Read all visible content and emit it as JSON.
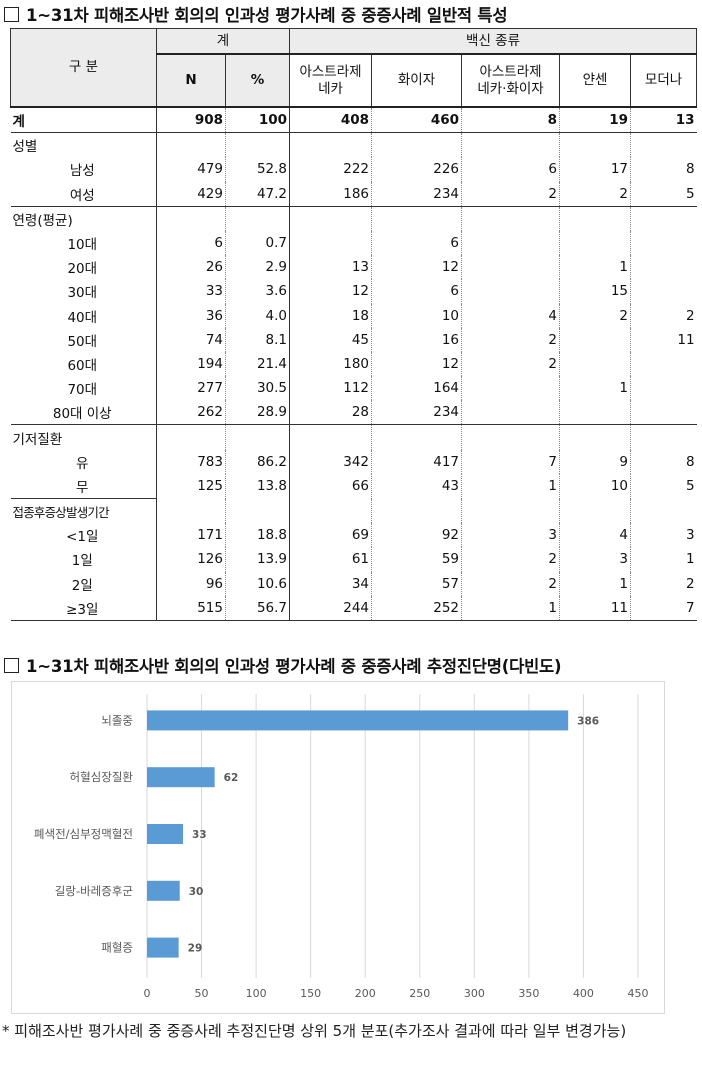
{
  "heading1": "1~31차 피해조사반 회의의 인과성 평가사례 중 중증사례 일반적 특성",
  "heading2": "1~31차 피해조사반 회의의 인과성 평가사례 중 중증사례 추정진단명(다빈도)",
  "table": {
    "header": {
      "category": "구 분",
      "total_group": "계",
      "n": "N",
      "pct": "%",
      "vaccine_group": "백신 종류",
      "astrazeneca": "아스트라제\n네카",
      "pfizer": "화이자",
      "az_pfizer": "아스트라제\n네카·화이자",
      "janssen": "얀센",
      "moderna": "모더나"
    },
    "rows": [
      {
        "label": "계",
        "n": "908",
        "pct": "100",
        "az": "408",
        "pf": "460",
        "azpf": "8",
        "ja": "19",
        "mo": "13"
      },
      {
        "label": "성별",
        "n": "",
        "pct": "",
        "az": "",
        "pf": "",
        "azpf": "",
        "ja": "",
        "mo": ""
      },
      {
        "label": "남성",
        "n": "479",
        "pct": "52.8",
        "az": "222",
        "pf": "226",
        "azpf": "6",
        "ja": "17",
        "mo": "8"
      },
      {
        "label": "여성",
        "n": "429",
        "pct": "47.2",
        "az": "186",
        "pf": "234",
        "azpf": "2",
        "ja": "2",
        "mo": "5"
      },
      {
        "label": "연령(평균)",
        "n": "",
        "pct": "",
        "az": "",
        "pf": "",
        "azpf": "",
        "ja": "",
        "mo": ""
      },
      {
        "label": "10대",
        "n": "6",
        "pct": "0.7",
        "az": "",
        "pf": "6",
        "azpf": "",
        "ja": "",
        "mo": ""
      },
      {
        "label": "20대",
        "n": "26",
        "pct": "2.9",
        "az": "13",
        "pf": "12",
        "azpf": "",
        "ja": "1",
        "mo": ""
      },
      {
        "label": "30대",
        "n": "33",
        "pct": "3.6",
        "az": "12",
        "pf": "6",
        "azpf": "",
        "ja": "15",
        "mo": ""
      },
      {
        "label": "40대",
        "n": "36",
        "pct": "4.0",
        "az": "18",
        "pf": "10",
        "azpf": "4",
        "ja": "2",
        "mo": "2"
      },
      {
        "label": "50대",
        "n": "74",
        "pct": "8.1",
        "az": "45",
        "pf": "16",
        "azpf": "2",
        "ja": "",
        "mo": "11"
      },
      {
        "label": "60대",
        "n": "194",
        "pct": "21.4",
        "az": "180",
        "pf": "12",
        "azpf": "2",
        "ja": "",
        "mo": ""
      },
      {
        "label": "70대",
        "n": "277",
        "pct": "30.5",
        "az": "112",
        "pf": "164",
        "azpf": "",
        "ja": "1",
        "mo": ""
      },
      {
        "label": "80대 이상",
        "n": "262",
        "pct": "28.9",
        "az": "28",
        "pf": "234",
        "azpf": "",
        "ja": "",
        "mo": ""
      },
      {
        "label": "기저질환",
        "n": "",
        "pct": "",
        "az": "",
        "pf": "",
        "azpf": "",
        "ja": "",
        "mo": ""
      },
      {
        "label": "유",
        "n": "783",
        "pct": "86.2",
        "az": "342",
        "pf": "417",
        "azpf": "7",
        "ja": "9",
        "mo": "8"
      },
      {
        "label": "무",
        "n": "125",
        "pct": "13.8",
        "az": "66",
        "pf": "43",
        "azpf": "1",
        "ja": "10",
        "mo": "5"
      },
      {
        "label": "접종후증상발생기간",
        "n": "",
        "pct": "",
        "az": "",
        "pf": "",
        "azpf": "",
        "ja": "",
        "mo": ""
      },
      {
        "label": "<1일",
        "n": "171",
        "pct": "18.8",
        "az": "69",
        "pf": "92",
        "azpf": "3",
        "ja": "4",
        "mo": "3"
      },
      {
        "label": "1일",
        "n": "126",
        "pct": "13.9",
        "az": "61",
        "pf": "59",
        "azpf": "2",
        "ja": "3",
        "mo": "1"
      },
      {
        "label": "2일",
        "n": "96",
        "pct": "10.6",
        "az": "34",
        "pf": "57",
        "azpf": "2",
        "ja": "1",
        "mo": "2"
      },
      {
        "label": "≥3일",
        "n": "515",
        "pct": "56.7",
        "az": "244",
        "pf": "252",
        "azpf": "1",
        "ja": "11",
        "mo": "7"
      }
    ]
  },
  "chart_data": {
    "type": "bar",
    "orientation": "horizontal",
    "categories": [
      "뇌졸중",
      "허혈심장질환",
      "폐색전/심부정맥혈전",
      "길랑-바레증후군",
      "패혈증"
    ],
    "values": [
      386,
      62,
      33,
      30,
      29
    ],
    "xlim": [
      0,
      450
    ],
    "xticks": [
      0,
      50,
      100,
      150,
      200,
      250,
      300,
      350,
      400,
      450
    ],
    "bar_color": "#5b9bd5",
    "grid": "vertical",
    "legend": "none"
  },
  "footnote": "* 피해조사반 평가사례 중 중증사례 추정진단명 상위 5개 분포(추가조사 결과에 따라 일부 변경가능)"
}
